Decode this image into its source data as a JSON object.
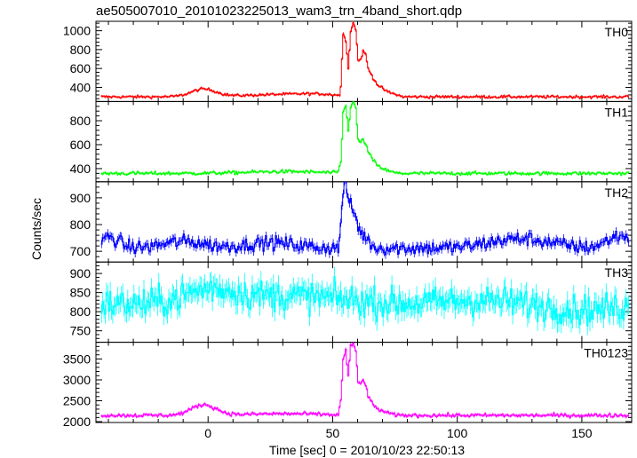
{
  "chart_data": {
    "type": "line",
    "title": "ae505007010_20101023225013_wam3_trn_4band_short.qdp",
    "xlabel": "Time [sec] 0 = 2010/10/23 22:50:13",
    "ylabel": "Counts/sec",
    "xlim": [
      -45,
      170
    ],
    "x_ticks": [
      0,
      50,
      100,
      150
    ],
    "bin_width": 0.5,
    "grid": false,
    "panels": [
      {
        "name": "TH0",
        "color": "#ff0000",
        "ylim": [
          250,
          1100
        ],
        "y_ticks": [
          400,
          600,
          800,
          1000
        ],
        "baseline": 300,
        "noise": 10,
        "err": 12,
        "bumps": [
          [
            -2,
            5,
            80
          ],
          [
            30,
            15,
            25
          ],
          [
            45,
            8,
            15
          ]
        ],
        "burst": [
          [
            52,
            220
          ],
          [
            53,
            400
          ],
          [
            53.5,
            700
          ],
          [
            54,
            980
          ],
          [
            55,
            900
          ],
          [
            56,
            600
          ],
          [
            57,
            1000
          ],
          [
            58,
            1080
          ],
          [
            59,
            1020
          ],
          [
            60,
            680
          ],
          [
            61,
            700
          ],
          [
            62,
            780
          ],
          [
            63,
            750
          ],
          [
            64,
            600
          ],
          [
            66,
            500
          ],
          [
            68,
            420
          ],
          [
            72,
            350
          ],
          [
            78,
            300
          ]
        ]
      },
      {
        "name": "TH1",
        "color": "#00ff00",
        "ylim": [
          290,
          960
        ],
        "y_ticks": [
          400,
          600,
          800
        ],
        "baseline": 360,
        "noise": 10,
        "err": 10,
        "bumps": [
          [
            30,
            15,
            15
          ]
        ],
        "burst": [
          [
            52,
            380
          ],
          [
            53,
            450
          ],
          [
            53.5,
            650
          ],
          [
            54,
            880
          ],
          [
            55,
            920
          ],
          [
            56,
            720
          ],
          [
            57,
            920
          ],
          [
            58,
            960
          ],
          [
            59,
            900
          ],
          [
            60,
            640
          ],
          [
            61,
            620
          ],
          [
            62,
            640
          ],
          [
            63,
            610
          ],
          [
            64,
            540
          ],
          [
            66,
            470
          ],
          [
            68,
            420
          ],
          [
            72,
            380
          ],
          [
            76,
            360
          ]
        ]
      },
      {
        "name": "TH2",
        "color": "#0000ff",
        "ylim": [
          660,
          960
        ],
        "y_ticks": [
          700,
          800,
          900
        ],
        "baseline": 712,
        "noise": 18,
        "err": 15,
        "bumps": [
          [
            -40,
            4,
            40
          ],
          [
            -10,
            8,
            25
          ],
          [
            25,
            10,
            20
          ],
          [
            125,
            12,
            35
          ],
          [
            165,
            5,
            45
          ]
        ],
        "burst": [
          [
            52,
            712
          ],
          [
            53,
            800
          ],
          [
            54,
            930
          ],
          [
            55,
            950
          ],
          [
            56,
            900
          ],
          [
            57,
            870
          ],
          [
            58,
            850
          ],
          [
            59,
            830
          ],
          [
            60,
            790
          ],
          [
            62,
            760
          ],
          [
            64,
            740
          ],
          [
            66,
            720
          ],
          [
            68,
            712
          ]
        ]
      },
      {
        "name": "TH3",
        "color": "#00ffff",
        "ylim": [
          720,
          930
        ],
        "y_ticks": [
          750,
          800,
          850,
          900
        ],
        "baseline": 820,
        "noise": 28,
        "err": 25,
        "bumps": [
          [
            0,
            10,
            35
          ],
          [
            25,
            15,
            20
          ],
          [
            50,
            12,
            10
          ],
          [
            110,
            15,
            10
          ],
          [
            150,
            15,
            -15
          ]
        ],
        "burst": []
      },
      {
        "name": "TH0123",
        "color": "#ff00ff",
        "ylim": [
          1980,
          3900
        ],
        "y_ticks": [
          2000,
          2500,
          3000,
          3500
        ],
        "baseline": 2150,
        "noise": 30,
        "err": 35,
        "bumps": [
          [
            -2,
            5,
            250
          ],
          [
            30,
            15,
            40
          ]
        ],
        "burst": [
          [
            52,
            2150
          ],
          [
            53,
            2500
          ],
          [
            54,
            3500
          ],
          [
            55,
            3700
          ],
          [
            56,
            3100
          ],
          [
            57,
            3800
          ],
          [
            58,
            3850
          ],
          [
            59,
            3700
          ],
          [
            60,
            2950
          ],
          [
            61,
            2900
          ],
          [
            62,
            3000
          ],
          [
            63,
            2900
          ],
          [
            64,
            2600
          ],
          [
            66,
            2400
          ],
          [
            68,
            2300
          ],
          [
            72,
            2200
          ],
          [
            76,
            2150
          ]
        ]
      }
    ]
  }
}
